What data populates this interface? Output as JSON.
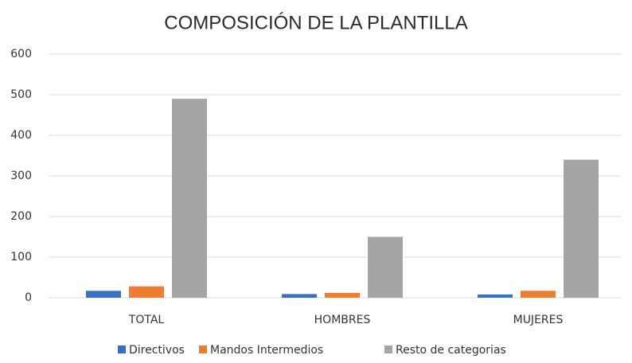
{
  "chart_data": {
    "type": "bar",
    "title": "COMPOSICIÓN DE LA PLANTILLA",
    "categories": [
      "TOTAL",
      "HOMBRES",
      "MUJERES"
    ],
    "series": [
      {
        "name": "Directivos",
        "color": "#3a6fc4",
        "values": [
          17,
          9,
          8
        ]
      },
      {
        "name": "Mandos Intermedios",
        "color": "#ed7d31",
        "values": [
          28,
          12,
          17
        ]
      },
      {
        "name": "Resto de categorias",
        "color": "#a5a5a5",
        "values": [
          490,
          150,
          340
        ]
      }
    ],
    "ylim": [
      0,
      600
    ],
    "yticks": [
      0,
      100,
      200,
      300,
      400,
      500,
      600
    ],
    "grid": true,
    "legend": "bottom"
  }
}
